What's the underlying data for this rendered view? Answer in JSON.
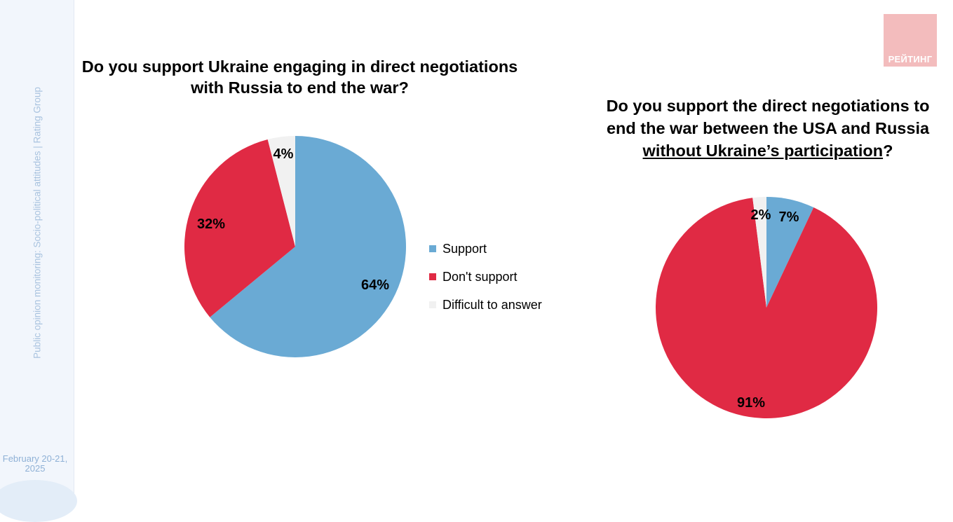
{
  "sidebar": {
    "vertical_text": "Public opinion monitoring: Socio-political attitudes | Rating Group",
    "date_line1": "February 20-21,",
    "date_line2": "2025"
  },
  "logo": {
    "text": "РЕЙТИНГ",
    "color": "#f3bcbd"
  },
  "chart_data": [
    {
      "type": "pie",
      "title_line1": "Do you support Ukraine engaging in direct negotiations",
      "title_line2": "with Russia to end the war?",
      "slices": [
        {
          "name": "Support",
          "value": 64,
          "label": "64%",
          "color": "#6aaad4"
        },
        {
          "name": "Don't support",
          "value": 32,
          "label": "32%",
          "color": "#e02a44"
        },
        {
          "name": "Difficult to answer",
          "value": 4,
          "label": "4%",
          "color": "#f1f1f1"
        }
      ],
      "legend": [
        "Support",
        "Don't support",
        "Difficult to answer"
      ],
      "legend_position": "right"
    },
    {
      "type": "pie",
      "title_line1": "Do you support the direct negotiations to",
      "title_line2": "end the war between the USA and Russia",
      "title_line3_underlined": "without Ukraine’s participation",
      "title_line3_suffix": "?",
      "slices": [
        {
          "name": "Support",
          "value": 7,
          "label": "7%",
          "color": "#6aaad4"
        },
        {
          "name": "Don't support",
          "value": 91,
          "label": "91%",
          "color": "#e02a44"
        },
        {
          "name": "Difficult to answer",
          "value": 2,
          "label": "2%",
          "color": "#f1f1f1"
        }
      ]
    }
  ]
}
